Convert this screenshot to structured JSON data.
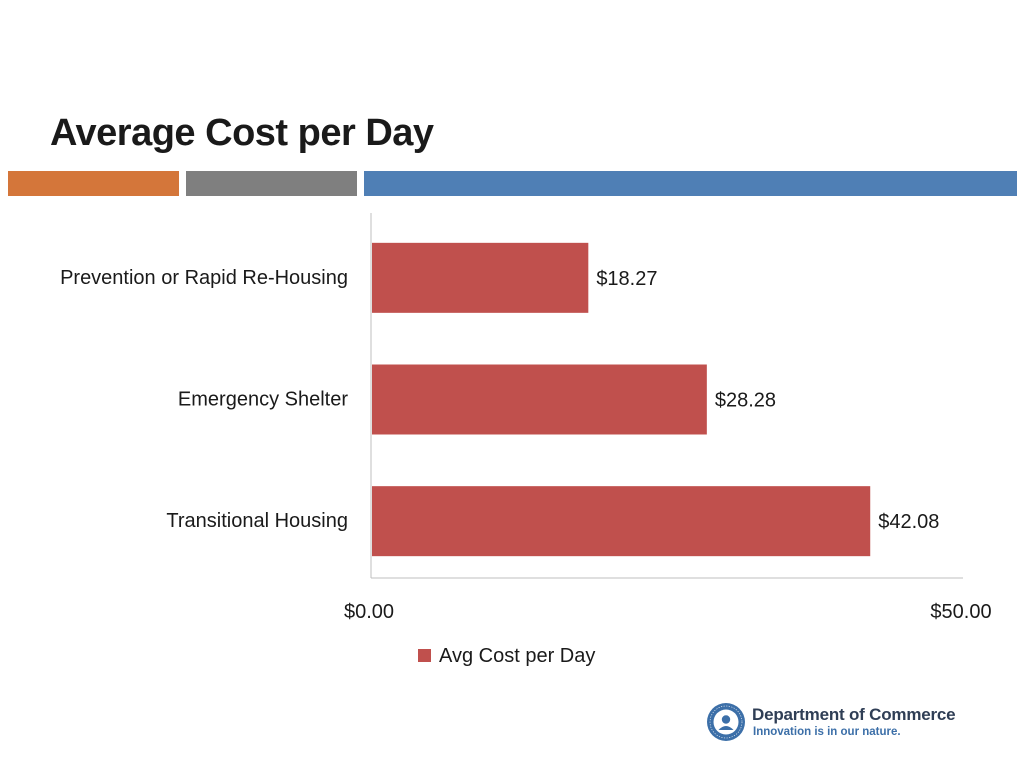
{
  "slide": {
    "title": "Average Cost per Day"
  },
  "colors": {
    "accent_orange": "#d4763a",
    "accent_gray": "#7f7f7f",
    "accent_blue": "#4f7fb5",
    "bar": "#c0504d",
    "axis": "#bfbfbf",
    "seal_blue": "#3c6fa8"
  },
  "chart_data": {
    "type": "bar",
    "orientation": "horizontal",
    "title": "",
    "categories": [
      "Prevention or Rapid Re-Housing",
      "Emergency Shelter",
      "Transitional Housing"
    ],
    "series": [
      {
        "name": "Avg Cost per Day",
        "values": [
          18.27,
          28.28,
          42.08
        ],
        "data_labels": [
          "$18.27",
          "$28.28",
          "$42.08"
        ]
      }
    ],
    "xlim": [
      0,
      50
    ],
    "x_ticks": [
      0,
      50
    ],
    "x_tick_labels": [
      "$0.00",
      "$50.00"
    ],
    "xlabel": "",
    "ylabel": "",
    "grid": false,
    "legend": {
      "position": "bottom",
      "entries": [
        "Avg Cost per Day"
      ]
    }
  },
  "footer": {
    "org_name": "Department of Commerce",
    "tagline": "Innovation is in our nature.",
    "seal_text": "STATE OF WASHINGTON",
    "seal_icon": "washington-state-seal-icon"
  }
}
